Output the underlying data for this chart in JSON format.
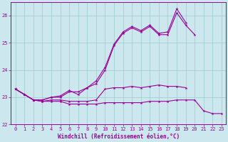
{
  "x_values": [
    0,
    1,
    2,
    3,
    4,
    5,
    6,
    7,
    8,
    9,
    10,
    11,
    12,
    13,
    14,
    15,
    16,
    17,
    18,
    19,
    20,
    21,
    22,
    23
  ],
  "line1": [
    23.3,
    23.1,
    22.9,
    22.85,
    22.85,
    22.85,
    22.75,
    22.75,
    22.75,
    22.75,
    22.8,
    22.8,
    22.8,
    22.8,
    22.8,
    22.85,
    22.85,
    22.85,
    22.9,
    22.9,
    22.9,
    22.5,
    22.4,
    22.4
  ],
  "line2": [
    23.3,
    23.1,
    22.9,
    22.85,
    22.9,
    22.9,
    22.85,
    22.85,
    22.85,
    22.9,
    23.3,
    23.35,
    23.35,
    23.4,
    23.35,
    23.4,
    23.45,
    23.4,
    23.4,
    23.35,
    null,
    null,
    null,
    null
  ],
  "line3": [
    23.3,
    23.1,
    22.9,
    22.9,
    23.0,
    23.0,
    23.2,
    23.2,
    23.35,
    23.5,
    24.0,
    24.9,
    25.35,
    25.55,
    25.4,
    25.6,
    25.3,
    25.3,
    26.1,
    25.65,
    25.3,
    null,
    null,
    null
  ],
  "line4": [
    23.3,
    23.1,
    22.9,
    22.9,
    23.0,
    23.05,
    23.25,
    23.1,
    23.35,
    23.6,
    24.1,
    24.95,
    25.4,
    25.6,
    25.45,
    25.65,
    25.35,
    25.4,
    26.25,
    25.75,
    null,
    null,
    null,
    null
  ],
  "color": "#990099",
  "bg_color": "#cce8ee",
  "grid_color": "#99cccc",
  "xlabel": "Windchill (Refroidissement éolien,°C)",
  "ylim": [
    22.0,
    26.5
  ],
  "xlim": [
    -0.5,
    23.5
  ],
  "yticks": [
    22,
    23,
    24,
    25,
    26
  ],
  "xticks": [
    0,
    1,
    2,
    3,
    4,
    5,
    6,
    7,
    8,
    9,
    10,
    11,
    12,
    13,
    14,
    15,
    16,
    17,
    18,
    19,
    20,
    21,
    22,
    23
  ],
  "marker": "*",
  "linewidth": 0.8,
  "markersize": 3
}
